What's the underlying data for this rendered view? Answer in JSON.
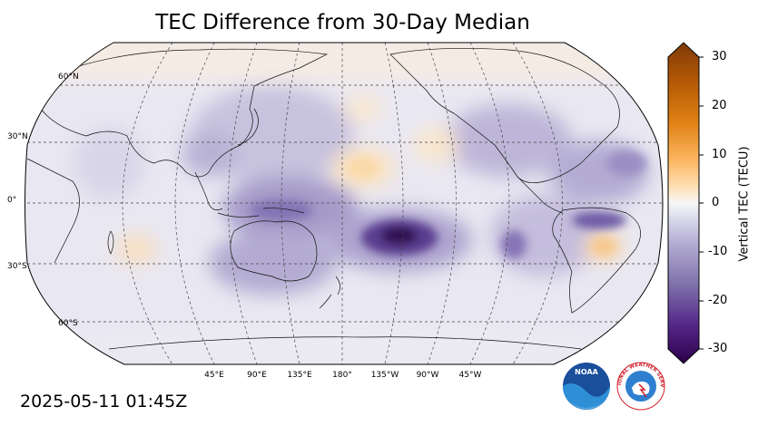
{
  "title": "TEC Difference from 30-Day Median",
  "timestamp": "2025-05-11 01:45Z",
  "map": {
    "projection": "robinson",
    "central_longitude": 180,
    "lat_labels": [
      "60°N",
      "30°N",
      "0°",
      "30°S",
      "60°S"
    ],
    "lon_labels": [
      "45°E",
      "90°E",
      "135°E",
      "180°",
      "135°W",
      "90°W",
      "45°W"
    ],
    "graticule": "dashed"
  },
  "colorbar": {
    "label": "Vertical TEC (TECU)",
    "ticks": [
      "30",
      "20",
      "10",
      "0",
      "-10",
      "-20",
      "-30"
    ],
    "range": [
      -30,
      30
    ],
    "colormap": "PuOr_r",
    "extend": "both"
  },
  "logos": {
    "noaa_text": "NOAA",
    "nws_text": "NATIONAL WEATHER SERVICE"
  }
}
